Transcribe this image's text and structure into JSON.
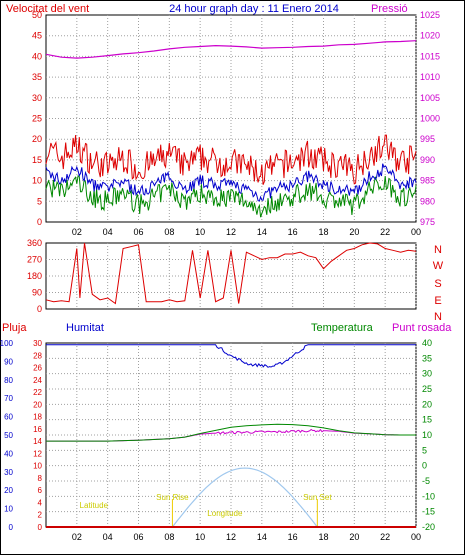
{
  "title": "24 hour graph day : 11 Enero 2014",
  "colors": {
    "wind": "#dd0000",
    "pressure": "#cc00cc",
    "humidity": "#0000cc",
    "temperature": "#008800",
    "dewpoint": "#cc00cc",
    "rain": "#cc0000",
    "sun": "#eecc00",
    "sunpath": "#a0c8ee",
    "frame": "#000000",
    "grid": "#a0a0a0"
  },
  "labels": {
    "wind": "Velocitat del vent",
    "pressure": "Pressió",
    "rain": "Pluja",
    "humidity": "Humitat",
    "temperature": "Temperatura",
    "dewpoint": "Punt rosada",
    "sunrise": "Sun Rise",
    "sunset": "Sun Set",
    "latitude": "Latitude",
    "longitude": "Longitude"
  },
  "chart_data": [
    {
      "type": "line",
      "name": "wind-pressure",
      "x_ticks": [
        "02",
        "04",
        "06",
        "08",
        "10",
        "12",
        "14",
        "16",
        "18",
        "20",
        "22",
        "00"
      ],
      "left_axis": {
        "ticks": [
          0,
          5,
          10,
          15,
          20,
          25,
          30,
          35,
          40,
          45,
          50
        ],
        "ylim": [
          0,
          50
        ]
      },
      "right_axis": {
        "ticks": [
          975,
          980,
          985,
          990,
          995,
          1000,
          1005,
          1010,
          1015,
          1020,
          1025
        ],
        "ylim": [
          975,
          1025
        ]
      },
      "series": [
        {
          "name": "Velocitat del vent",
          "axis": "left",
          "x": [
            0,
            1,
            2,
            3,
            4,
            5,
            6,
            7,
            8,
            9,
            10,
            11,
            12,
            13,
            14,
            15,
            16,
            17,
            18,
            19,
            20,
            21,
            22,
            23,
            24
          ],
          "values": [
            12,
            10,
            13,
            9,
            8,
            10,
            7,
            9,
            11,
            8,
            10,
            9,
            9,
            8,
            6,
            8,
            9,
            11,
            9,
            8,
            7,
            11,
            13,
            9,
            10
          ]
        },
        {
          "name": "Pressió",
          "axis": "right",
          "x": [
            0,
            1,
            2,
            3,
            4,
            5,
            6,
            7,
            8,
            9,
            10,
            11,
            12,
            13,
            14,
            15,
            16,
            17,
            18,
            19,
            20,
            21,
            22,
            23,
            24
          ],
          "values": [
            1015.5,
            1014.8,
            1014.6,
            1014.8,
            1015.2,
            1015.6,
            1015.9,
            1016.3,
            1016.8,
            1017.2,
            1017.4,
            1017.6,
            1017.5,
            1017.3,
            1017.0,
            1017.1,
            1017.2,
            1017.4,
            1017.5,
            1017.8,
            1017.9,
            1018.2,
            1018.5,
            1018.6,
            1018.8
          ]
        }
      ]
    },
    {
      "type": "line",
      "name": "wind-direction",
      "y_ticks": [
        0,
        90,
        180,
        270,
        360
      ],
      "ylim": [
        0,
        360
      ],
      "compass": [
        "N",
        "W",
        "S",
        "E",
        "N"
      ],
      "series": [
        {
          "name": "direction",
          "x": [
            0,
            0.5,
            1,
            1.5,
            2,
            2.2,
            2.5,
            3,
            3.5,
            4,
            4.5,
            5,
            5.5,
            6,
            6.5,
            7,
            7.5,
            8,
            8.5,
            9,
            9.5,
            10,
            10.5,
            11,
            11.5,
            12,
            12.5,
            13,
            13.5,
            14,
            14.5,
            15,
            15.5,
            16,
            16.5,
            17,
            17.5,
            18,
            18.5,
            19,
            19.5,
            20,
            20.5,
            21,
            21.5,
            22,
            22.5,
            23,
            23.5,
            24
          ],
          "values": [
            50,
            40,
            45,
            40,
            330,
            60,
            360,
            80,
            50,
            60,
            30,
            330,
            340,
            350,
            40,
            40,
            40,
            50,
            40,
            45,
            320,
            60,
            320,
            40,
            60,
            320,
            30,
            310,
            290,
            270,
            280,
            280,
            300,
            300,
            310,
            290,
            280,
            220,
            260,
            290,
            320,
            330,
            350,
            360,
            355,
            330,
            320,
            310,
            320,
            315
          ]
        }
      ]
    },
    {
      "type": "line",
      "name": "rain-humidity-temperature",
      "x_ticks": [
        "02",
        "04",
        "06",
        "08",
        "10",
        "12",
        "14",
        "16",
        "18",
        "20",
        "22",
        "00"
      ],
      "humidity_axis": {
        "ticks": [
          0,
          10,
          20,
          30,
          40,
          50,
          60,
          70,
          80,
          90,
          100
        ],
        "ylim": [
          0,
          100
        ]
      },
      "rain_axis": {
        "ticks": [
          0,
          2,
          4,
          6,
          8,
          10,
          12,
          14,
          16,
          18,
          20,
          22,
          24,
          26,
          28,
          30
        ],
        "ylim": [
          0,
          30
        ]
      },
      "temperature_axis": {
        "ticks": [
          -20,
          -15,
          -10,
          -5,
          0,
          5,
          10,
          15,
          20,
          25,
          30,
          35,
          40
        ],
        "ylim": [
          -20,
          40
        ]
      },
      "series": [
        {
          "name": "Humitat",
          "axis": "humidity",
          "x": [
            0,
            2,
            4,
            6,
            8,
            10,
            11,
            11.5,
            12,
            12.5,
            13,
            13.5,
            14,
            14.5,
            15,
            15.5,
            16,
            16.5,
            17,
            18,
            20,
            22,
            24
          ],
          "values": [
            99,
            99,
            99,
            99,
            99,
            99,
            99,
            96,
            93,
            91,
            89,
            88,
            88,
            87,
            88,
            90,
            93,
            96,
            99,
            99,
            99,
            99,
            99
          ]
        },
        {
          "name": "Temperatura",
          "axis": "temperature",
          "x": [
            0,
            2,
            4,
            6,
            8,
            9,
            10,
            11,
            12,
            13,
            14,
            15,
            16,
            17,
            18,
            19,
            20,
            21,
            22,
            23,
            24
          ],
          "values": [
            8,
            8,
            8,
            8.3,
            8.8,
            9.3,
            10.5,
            11.5,
            12.5,
            13,
            13.3,
            13.5,
            13.4,
            13,
            12.3,
            11.4,
            10.7,
            10.4,
            10.1,
            10,
            10
          ]
        },
        {
          "name": "Punt rosada",
          "axis": "temperature",
          "x": [
            0,
            2,
            4,
            6,
            8,
            9,
            10,
            11,
            12,
            13,
            14,
            15,
            16,
            17,
            18,
            19,
            20,
            21,
            22,
            23,
            24
          ],
          "values": [
            8,
            8,
            8,
            8.3,
            8.8,
            9.3,
            10.3,
            10.6,
            10.8,
            10.9,
            11,
            11,
            11.2,
            11.4,
            11.4,
            11.2,
            10.6,
            10.4,
            10.1,
            10,
            10
          ]
        },
        {
          "name": "Pluja",
          "axis": "rain",
          "x": [
            0,
            24
          ],
          "values": [
            0,
            0
          ]
        }
      ],
      "sun": {
        "sunrise_hour": 8.2,
        "sunset_hour": 17.6,
        "peak_hour": 12.9,
        "peak_temp_axis": -0.8
      }
    }
  ]
}
